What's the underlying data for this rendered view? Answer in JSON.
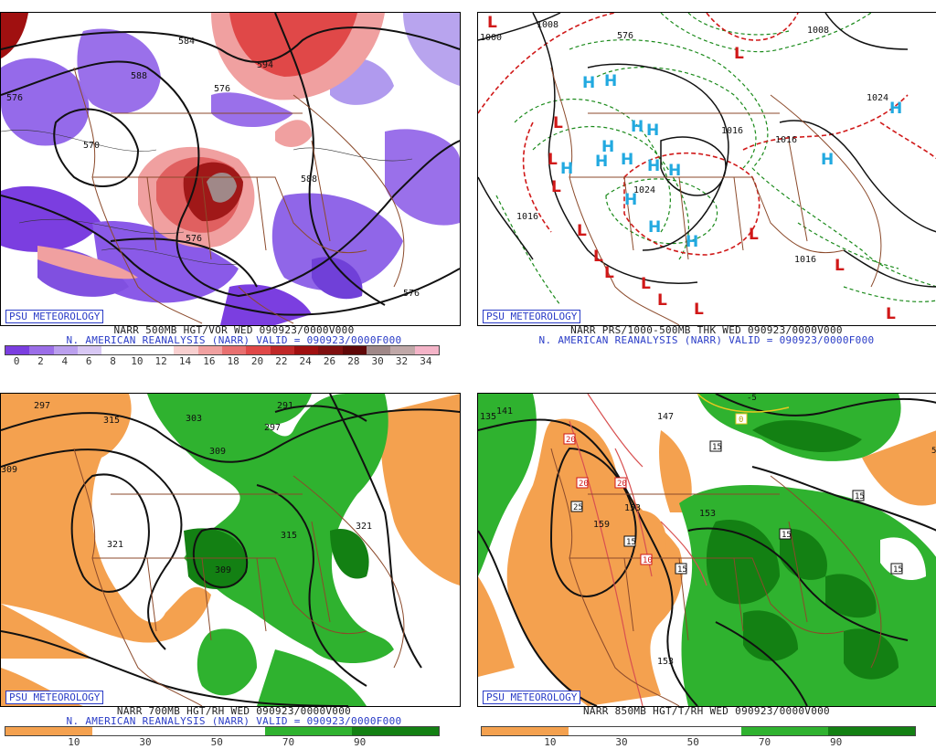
{
  "badge": "PSU METEOROLOGY",
  "panels": {
    "tl": {
      "caption1": "NARR 500MB HGT/VOR WED 090923/0000V000",
      "caption2": "N. AMERICAN REANALYSIS (NARR) VALID = 090923/0000F000",
      "colorbar_labels": [
        "0",
        "2",
        "4",
        "6",
        "8",
        "10",
        "12",
        "14",
        "16",
        "18",
        "20",
        "22",
        "24",
        "26",
        "28",
        "30",
        "32",
        "34"
      ],
      "colorbar_colors": [
        "#7b3ee0",
        "#9b6ee8",
        "#bba0ee",
        "#d8c8f4",
        "#ffffff",
        "#ffffff",
        "#ffffff",
        "#f8d0d0",
        "#f0a0a0",
        "#e87070",
        "#e04848",
        "#c02828",
        "#a01010",
        "#801010",
        "#600808",
        "#a08888",
        "#c0a8a8",
        "#f4b4c8"
      ],
      "contour_labels": [
        "584",
        "588",
        "576",
        "576",
        "576",
        "570",
        "594",
        "588",
        "576"
      ]
    },
    "tr": {
      "caption1": "NARR PRS/1000-500MB THK WED 090923/0000V000",
      "caption2": "N. AMERICAN REANALYSIS (NARR) VALID = 090923/0000F000",
      "pressure_labels": [
        "1008",
        "1008",
        "1000",
        "1016",
        "1016",
        "1024",
        "1024",
        "1016",
        "1016"
      ],
      "thickness_labels": [
        "576"
      ],
      "high_symbol": "H",
      "low_symbol": "L"
    },
    "bl": {
      "caption1": "NARR 700MB HGT/RH WED 090923/0000V000",
      "caption2": "N. AMERICAN REANALYSIS (NARR) VALID = 090923/0000F000",
      "colorbar_labels": [
        "10",
        "30",
        "50",
        "70",
        "90"
      ],
      "contour_labels": [
        "297",
        "315",
        "303",
        "291",
        "297",
        "309",
        "309",
        "321",
        "309",
        "315",
        "321"
      ]
    },
    "br": {
      "caption1": "NARR 850MB HGT/T/RH WED 090923/0000V000",
      "colorbar_labels": [
        "10",
        "30",
        "50",
        "70",
        "90"
      ],
      "contour_labels": [
        "135",
        "141",
        "147",
        "153",
        "153",
        "159",
        "153"
      ],
      "temp_boxes_black": [
        "15",
        "15",
        "15",
        "15",
        "15",
        "15"
      ],
      "temp_boxes_red": [
        "20",
        "20",
        "20",
        "25",
        "10"
      ],
      "temp_boxes_yellow": [
        "-5",
        "0",
        "5"
      ]
    }
  }
}
